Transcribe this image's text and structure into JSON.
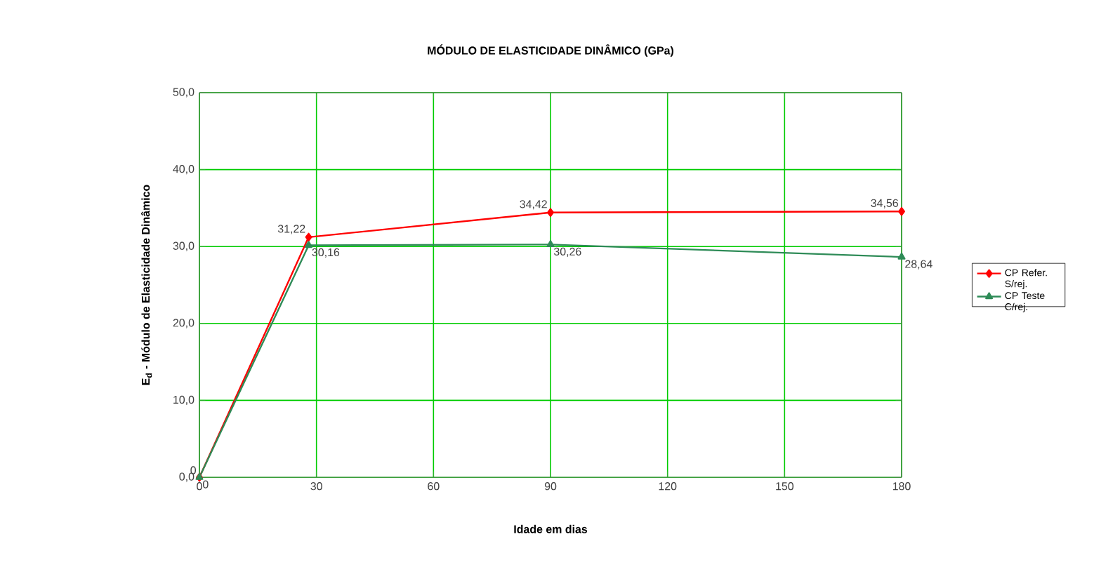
{
  "chart_data": {
    "type": "line",
    "title": "MÓDULO DE ELASTICIDADE DINÂMICO (GPa)",
    "xlabel": "Idade em dias",
    "ylabel": "E$_{d}$ - Módulo de Elasticidade Dinâmico",
    "x": [
      0,
      28,
      90,
      180
    ],
    "series": [
      {
        "name": "CP Refer. S/rej.",
        "color": "#ff0000",
        "marker": "diamond",
        "values": [
          0,
          31.22,
          34.42,
          34.56
        ],
        "value_labels": [
          "0",
          "31,22",
          "34,42",
          "34,56"
        ]
      },
      {
        "name": "CP Teste C/rej.",
        "color": "#2e8b57",
        "marker": "triangle",
        "values": [
          0,
          30.16,
          30.26,
          28.64
        ],
        "value_labels": [
          "0",
          "30,16",
          "30,26",
          "28,64"
        ]
      }
    ],
    "xlim": [
      0,
      180
    ],
    "xticks": [
      0,
      30,
      60,
      90,
      120,
      150,
      180
    ],
    "ylim": [
      0,
      50
    ],
    "yticks": [
      {
        "value": 0,
        "label": "0,0"
      },
      {
        "value": 10,
        "label": "10,0"
      },
      {
        "value": 20,
        "label": "20,0"
      },
      {
        "value": 30,
        "label": "30,0"
      },
      {
        "value": 40,
        "label": "40,0"
      },
      {
        "value": 50,
        "label": "50,0"
      }
    ],
    "grid": true,
    "legend": "right"
  }
}
